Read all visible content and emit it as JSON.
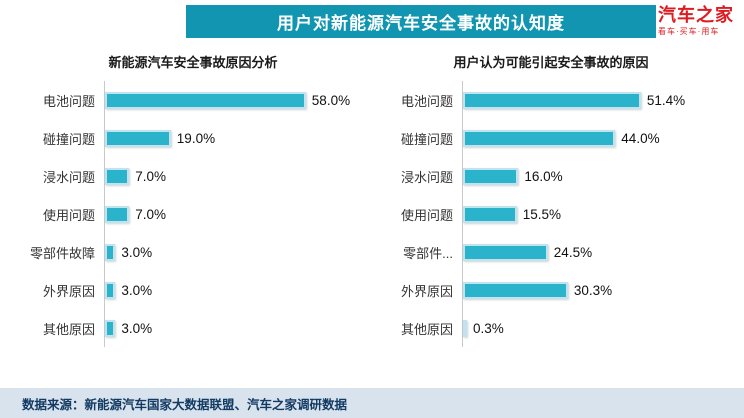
{
  "header": {
    "title": "用户对新能源汽车安全事故的认知度"
  },
  "logo": {
    "name": "汽车之家",
    "tagline": "看车·买车·用车"
  },
  "chart_data": [
    {
      "type": "bar",
      "orientation": "horizontal",
      "title": "新能源汽车安全事故原因分析",
      "categories": [
        "电池问题",
        "碰撞问题",
        "浸水问题",
        "使用问题",
        "零部件故障",
        "外界原因",
        "其他原因"
      ],
      "values": [
        58.0,
        19.0,
        7.0,
        7.0,
        3.0,
        3.0,
        3.0
      ],
      "value_labels": [
        "58.0%",
        "19.0%",
        "7.0%",
        "7.0%",
        "3.0%",
        "3.0%",
        "3.0%"
      ],
      "xlim": [
        0,
        65
      ],
      "grid": false,
      "legend": "none",
      "bar_color": "#2BB3CC"
    },
    {
      "type": "bar",
      "orientation": "horizontal",
      "title": "用户认为可能引起安全事故的原因",
      "categories": [
        "电池问题",
        "碰撞问题",
        "浸水问题",
        "使用问题",
        "零部件...",
        "外界原因",
        "其他原因"
      ],
      "values": [
        51.4,
        44.0,
        16.0,
        15.5,
        24.5,
        30.3,
        0.3
      ],
      "value_labels": [
        "51.4%",
        "44.0%",
        "16.0%",
        "15.5%",
        "24.5%",
        "30.3%",
        "0.3%"
      ],
      "xlim": [
        0,
        65
      ],
      "grid": false,
      "legend": "none",
      "bar_color": "#2BB3CC"
    }
  ],
  "footer": {
    "text": "数据来源：新能源汽车国家大数据联盟、汽车之家调研数据"
  },
  "colors": {
    "banner": "#1195B0",
    "bar": "#2BB3CC",
    "bar_border": "#BFE4F0",
    "footer_bg": "#D8E3ED",
    "logo_red": "#DD1C22"
  }
}
